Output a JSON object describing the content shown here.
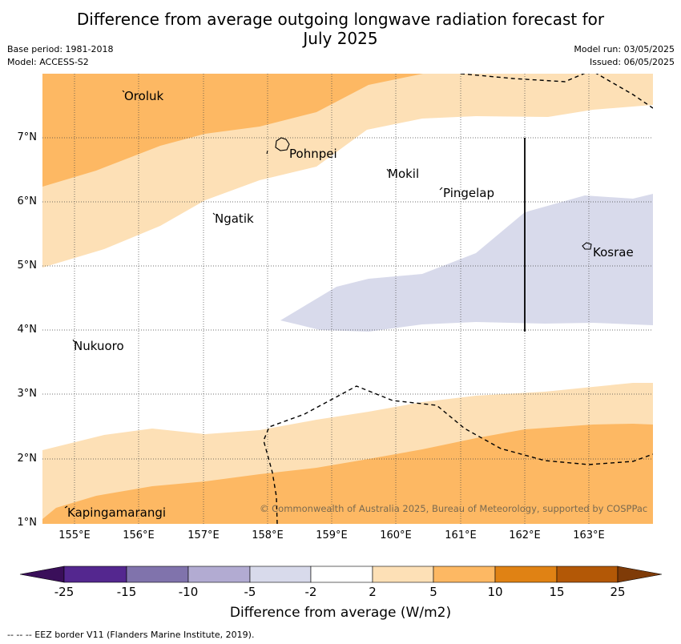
{
  "title_line1": "Difference from average outgoing longwave radiation forecast for",
  "title_line2": "July 2025",
  "base_period": "Base period: 1981-2018",
  "model": "Model: ACCESS-S2",
  "model_run": "Model run: 03/05/2025",
  "issued": "Issued: 06/05/2025",
  "lat_labels": [
    "7°N",
    "6°N",
    "5°N",
    "4°N",
    "3°N",
    "2°N",
    "1°N"
  ],
  "lon_labels": [
    "155°E",
    "156°E",
    "157°E",
    "158°E",
    "159°E",
    "160°E",
    "161°E",
    "162°E",
    "163°E"
  ],
  "places": [
    "Oroluk",
    "Pohnpei",
    "Mokil",
    "Pingelap",
    "Ngatik",
    "Kosrae",
    "Nukuoro",
    "Kapingamarangi"
  ],
  "copyright": "© Commonwealth of Australia 2025, Bureau of Meteorology, supported by COSPPac",
  "colorbar": {
    "ticks": [
      "-25",
      "-15",
      "-10",
      "-5",
      "-2",
      "2",
      "5",
      "10",
      "15",
      "25"
    ],
    "colors": [
      "#3a0f5a",
      "#54278f",
      "#8073ac",
      "#b2abd2",
      "#d8daeb",
      "#ffffff",
      "#fde0b6",
      "#fdb863",
      "#e08214",
      "#b35806",
      "#7f3b08"
    ],
    "title": "Difference from average (W/m2)"
  },
  "footnote": "--  --  -- EEZ border V11 (Flanders Marine Institute, 2019)."
}
